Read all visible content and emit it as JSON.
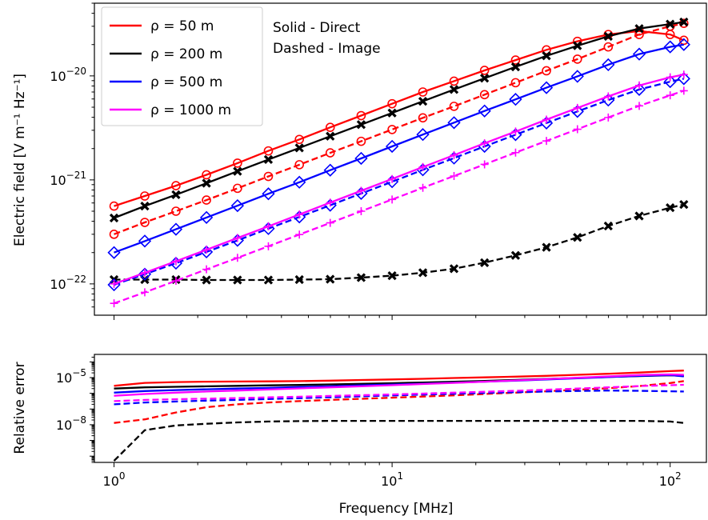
{
  "chart_data": [
    {
      "type": "line",
      "xscale": "log",
      "yscale": "log",
      "xlim": [
        0.85,
        135
      ],
      "ylim": [
        5e-23,
        5e-20
      ],
      "xlabel": "",
      "ylabel": "Electric field [V m⁻¹ Hz⁻¹]",
      "yticks": [
        {
          "value": 1e-22,
          "base": "10",
          "exp": "−22"
        },
        {
          "value": 1e-21,
          "base": "10",
          "exp": "−21"
        },
        {
          "value": 1e-20,
          "base": "10",
          "exp": "−20"
        }
      ],
      "legend": {
        "placement": "top-left",
        "entries": [
          {
            "label": "ρ = 50 m",
            "color": "#ff0000"
          },
          {
            "label": "ρ = 200 m",
            "color": "#000000"
          },
          {
            "label": "ρ = 500 m",
            "color": "#0000ff"
          },
          {
            "label": "ρ = 1000 m",
            "color": "#ff00ff"
          }
        ]
      },
      "annotations": [
        "Solid - Direct",
        "Dashed - Image"
      ],
      "x": [
        1.0,
        1.29,
        1.67,
        2.15,
        2.78,
        3.59,
        4.64,
        5.99,
        7.74,
        10.0,
        12.9,
        16.7,
        21.5,
        27.8,
        35.9,
        46.4,
        59.9,
        77.4,
        100.0,
        112.0
      ],
      "series": [
        {
          "group": "ρ = 50 m",
          "style": "solid",
          "marker": "o",
          "color": "#ff0000",
          "values": [
            5.6e-22,
            7e-22,
            8.8e-22,
            1.12e-21,
            1.45e-21,
            1.9e-21,
            2.45e-21,
            3.2e-21,
            4.15e-21,
            5.4e-21,
            7e-21,
            8.9e-21,
            1.13e-20,
            1.42e-20,
            1.78e-20,
            2.15e-20,
            2.5e-20,
            2.7e-20,
            2.5e-20,
            2.2e-20
          ]
        },
        {
          "group": "ρ = 50 m",
          "style": "dashed",
          "marker": "o",
          "color": "#ff0000",
          "values": [
            3e-22,
            3.9e-22,
            5e-22,
            6.4e-22,
            8.3e-22,
            1.08e-21,
            1.4e-21,
            1.82e-21,
            2.35e-21,
            3.05e-21,
            3.95e-21,
            5.1e-21,
            6.6e-21,
            8.6e-21,
            1.12e-20,
            1.45e-20,
            1.9e-20,
            2.5e-20,
            3e-20,
            3.2e-20
          ]
        },
        {
          "group": "ρ = 200 m",
          "style": "solid",
          "marker": "x",
          "color": "#000000",
          "values": [
            4.3e-22,
            5.6e-22,
            7.2e-22,
            9.3e-22,
            1.21e-21,
            1.57e-21,
            2.03e-21,
            2.63e-21,
            3.4e-21,
            4.4e-21,
            5.7e-21,
            7.4e-21,
            9.5e-21,
            1.22e-20,
            1.56e-20,
            1.95e-20,
            2.4e-20,
            2.85e-20,
            3.15e-20,
            3.3e-20
          ]
        },
        {
          "group": "ρ = 200 m",
          "style": "dashed",
          "marker": "x",
          "color": "#000000",
          "values": [
            1.1e-22,
            1.1e-22,
            1.1e-22,
            1.09e-22,
            1.09e-22,
            1.09e-22,
            1.1e-22,
            1.11e-22,
            1.15e-22,
            1.2e-22,
            1.28e-22,
            1.4e-22,
            1.6e-22,
            1.88e-22,
            2.25e-22,
            2.8e-22,
            3.6e-22,
            4.5e-22,
            5.4e-22,
            5.8e-22
          ]
        },
        {
          "group": "ρ = 500 m",
          "style": "solid",
          "marker": "d",
          "color": "#0000ff",
          "values": [
            2e-22,
            2.58e-22,
            3.35e-22,
            4.35e-22,
            5.65e-22,
            7.35e-22,
            9.5e-22,
            1.24e-21,
            1.61e-21,
            2.1e-21,
            2.73e-21,
            3.55e-21,
            4.6e-21,
            5.95e-21,
            7.7e-21,
            9.9e-21,
            1.28e-20,
            1.62e-20,
            1.9e-20,
            2e-20
          ]
        },
        {
          "group": "ρ = 500 m",
          "style": "dashed",
          "marker": "d",
          "color": "#0000ff",
          "values": [
            9.8e-23,
            1.24e-22,
            1.58e-22,
            2.03e-22,
            2.62e-22,
            3.4e-22,
            4.4e-22,
            5.7e-22,
            7.4e-22,
            9.6e-22,
            1.25e-21,
            1.62e-21,
            2.1e-21,
            2.72e-21,
            3.52e-21,
            4.55e-21,
            5.85e-21,
            7.4e-21,
            8.8e-21,
            9.4e-21
          ]
        },
        {
          "group": "ρ = 1000 m",
          "style": "solid",
          "marker": "+",
          "color": "#ff00ff",
          "values": [
            1e-22,
            1.28e-22,
            1.65e-22,
            2.13e-22,
            2.76e-22,
            3.58e-22,
            4.65e-22,
            6.05e-22,
            7.85e-22,
            1.02e-21,
            1.33e-21,
            1.73e-21,
            2.25e-21,
            2.92e-21,
            3.8e-21,
            4.92e-21,
            6.35e-21,
            8.1e-21,
            9.7e-21,
            1.03e-20
          ]
        },
        {
          "group": "ρ = 1000 m",
          "style": "dashed",
          "marker": "+",
          "color": "#ff00ff",
          "values": [
            6.5e-23,
            8.3e-23,
            1.07e-22,
            1.38e-22,
            1.78e-22,
            2.3e-22,
            2.98e-22,
            3.86e-22,
            5e-22,
            6.48e-22,
            8.4e-22,
            1.09e-21,
            1.41e-21,
            1.83e-21,
            2.37e-21,
            3.07e-21,
            3.98e-21,
            5.15e-21,
            6.5e-21,
            7.2e-21
          ]
        }
      ]
    },
    {
      "type": "line",
      "xscale": "log",
      "yscale": "log",
      "xlim": [
        0.85,
        135
      ],
      "ylim": [
        4e-11,
        0.0003
      ],
      "xlabel": "Frequency [MHz]",
      "ylabel": "Relative error",
      "xticks": [
        {
          "value": 1,
          "base": "10",
          "exp": "0"
        },
        {
          "value": 10,
          "base": "10",
          "exp": "1"
        },
        {
          "value": 100,
          "base": "10",
          "exp": "2"
        }
      ],
      "yticks": [
        {
          "value": 1e-08,
          "base": "10",
          "exp": "−8"
        },
        {
          "value": 1e-05,
          "base": "10",
          "exp": "−5"
        }
      ],
      "x": [
        1.0,
        1.29,
        1.67,
        2.15,
        2.78,
        3.59,
        4.64,
        5.99,
        7.74,
        10.0,
        12.9,
        16.7,
        21.5,
        27.8,
        35.9,
        46.4,
        59.9,
        77.4,
        100.0,
        112.0
      ],
      "series": [
        {
          "group": "ρ = 50 m",
          "style": "solid",
          "color": "#ff0000",
          "values": [
            3e-06,
            4.6e-06,
            5.2e-06,
            5.5e-06,
            5.6e-06,
            5.8e-06,
            6e-06,
            6.4e-06,
            7e-06,
            7.6e-06,
            8.4e-06,
            9.4e-06,
            1.04e-05,
            1.15e-05,
            1.3e-05,
            1.5e-05,
            1.75e-05,
            2.1e-05,
            2.6e-05,
            2.8e-05
          ]
        },
        {
          "group": "ρ = 50 m",
          "style": "dashed",
          "color": "#ff0000",
          "values": [
            1.3e-08,
            2.2e-08,
            6e-08,
            1.3e-07,
            2e-07,
            2.6e-07,
            3.2e-07,
            3.8e-07,
            4.5e-07,
            5.3e-07,
            6.2e-07,
            7.4e-07,
            9e-07,
            1.1e-06,
            1.35e-06,
            1.7e-06,
            2.1e-06,
            2.9e-06,
            4.5e-06,
            6e-06
          ]
        },
        {
          "group": "ρ = 200 m",
          "style": "solid",
          "color": "#000000",
          "values": [
            2e-06,
            2.4e-06,
            2.6e-06,
            2.8e-06,
            3e-06,
            3.2e-06,
            3.4e-06,
            3.7e-06,
            4e-06,
            4.4e-06,
            4.9e-06,
            5.5e-06,
            6.2e-06,
            7.1e-06,
            8.2e-06,
            9.5e-06,
            1.1e-05,
            1.25e-05,
            1.4e-05,
            1.3e-05
          ]
        },
        {
          "group": "ρ = 200 m",
          "style": "dashed",
          "color": "#000000",
          "values": [
            5e-11,
            4.5e-09,
            9e-09,
            1.15e-08,
            1.4e-08,
            1.6e-08,
            1.7e-08,
            1.75e-08,
            1.75e-08,
            1.75e-08,
            1.75e-08,
            1.75e-08,
            1.75e-08,
            1.75e-08,
            1.75e-08,
            1.75e-08,
            1.75e-08,
            1.75e-08,
            1.6e-08,
            1.3e-08
          ]
        },
        {
          "group": "ρ = 500 m",
          "style": "solid",
          "color": "#0000ff",
          "values": [
            1.1e-06,
            1.4e-06,
            1.6e-06,
            1.8e-06,
            2e-06,
            2.2e-06,
            2.5e-06,
            2.8e-06,
            3.2e-06,
            3.6e-06,
            4.1e-06,
            4.7e-06,
            5.5e-06,
            6.4e-06,
            7.6e-06,
            9e-06,
            1.08e-05,
            1.3e-05,
            1.45e-05,
            1.2e-05
          ]
        },
        {
          "group": "ρ = 500 m",
          "style": "dashed",
          "color": "#0000ff",
          "values": [
            2e-07,
            2.6e-07,
            3e-07,
            3.4e-07,
            3.8e-07,
            4.3e-07,
            4.9e-07,
            5.6e-07,
            6.4e-07,
            7.3e-07,
            8.3e-07,
            9.4e-07,
            1.05e-06,
            1.18e-06,
            1.3e-06,
            1.42e-06,
            1.5e-06,
            1.45e-06,
            1.35e-06,
            1.3e-06
          ]
        },
        {
          "group": "ρ = 1000 m",
          "style": "solid",
          "color": "#ff00ff",
          "values": [
            7e-07,
            9e-07,
            1.1e-06,
            1.3e-06,
            1.5e-06,
            1.75e-06,
            2.05e-06,
            2.4e-06,
            2.8e-06,
            3.3e-06,
            3.9e-06,
            4.6e-06,
            5.5e-06,
            6.6e-06,
            8e-06,
            9.8e-06,
            1.2e-05,
            1.45e-05,
            1.6e-05,
            1.5e-05
          ]
        },
        {
          "group": "ρ = 1000 m",
          "style": "dashed",
          "color": "#ff00ff",
          "values": [
            3.2e-07,
            3.8e-07,
            4.2e-07,
            4.6e-07,
            5e-07,
            5.5e-07,
            6.1e-07,
            6.8e-07,
            7.6e-07,
            8.5e-07,
            9.6e-07,
            1.1e-06,
            1.25e-06,
            1.45e-06,
            1.7e-06,
            2e-06,
            2.4e-06,
            2.9e-06,
            3.3e-06,
            3.5e-06
          ]
        }
      ]
    }
  ]
}
